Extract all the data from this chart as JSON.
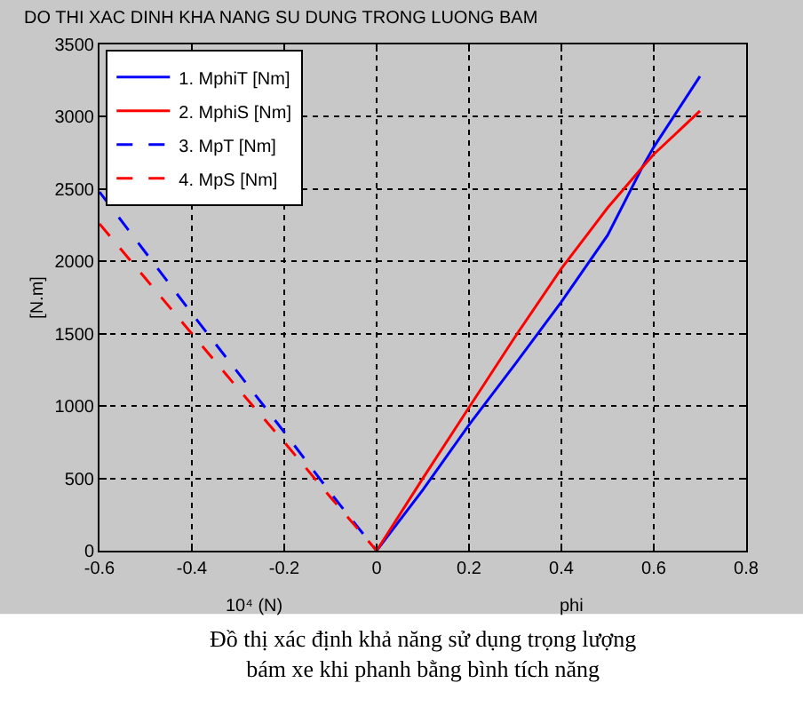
{
  "chart_data": {
    "type": "line",
    "title": "DO THI XAC DINH KHA NANG SU DUNG TRONG LUONG BAM",
    "xlabel": "phi",
    "ylabel": "[N.m]",
    "annotations": [
      "10⁴ (N)",
      "Đồ thị xác định khả năng sử dụng trọng lượng bám xe khi phanh bằng bình tích năng"
    ],
    "xlim": [
      -0.6,
      0.8
    ],
    "xticks": [
      -0.6,
      -0.4,
      -0.2,
      0,
      0.2,
      0.4,
      0.6,
      0.8
    ],
    "ylim": [
      0,
      3500
    ],
    "yticks": [
      0,
      500,
      1000,
      1500,
      2000,
      2500,
      3000,
      3500
    ],
    "grid": true,
    "legend": "top left",
    "marker": "none",
    "series": [
      {
        "name": "1. MphiT [Nm]",
        "color": "#0000ff",
        "line_style": "solid",
        "x": [
          0,
          0.1,
          0.2,
          0.3,
          0.4,
          0.5,
          0.575,
          0.6,
          0.7
        ],
        "values": [
          0,
          420,
          870,
          1290,
          1720,
          2180,
          2650,
          2790,
          3280
        ]
      },
      {
        "name": "2. MphiS [Nm]",
        "color": "#ff0000",
        "line_style": "solid",
        "x": [
          0,
          0.1,
          0.2,
          0.3,
          0.4,
          0.5,
          0.575,
          0.6,
          0.7
        ],
        "values": [
          0,
          500,
          990,
          1480,
          1950,
          2370,
          2650,
          2740,
          3040
        ]
      },
      {
        "name": "3. MpT [Nm]",
        "color": "#0000ff",
        "line_style": "dashed",
        "x": [
          -0.6,
          -0.5,
          -0.4,
          -0.3,
          -0.2,
          -0.1,
          0
        ],
        "values": [
          2480,
          2060,
          1640,
          1230,
          820,
          400,
          0
        ]
      },
      {
        "name": "4. MpS [Nm]",
        "color": "#ff0000",
        "line_style": "dashed",
        "x": [
          -0.6,
          -0.5,
          -0.4,
          -0.3,
          -0.2,
          -0.1,
          0
        ],
        "values": [
          2260,
          1880,
          1500,
          1120,
          750,
          370,
          0
        ]
      }
    ]
  }
}
